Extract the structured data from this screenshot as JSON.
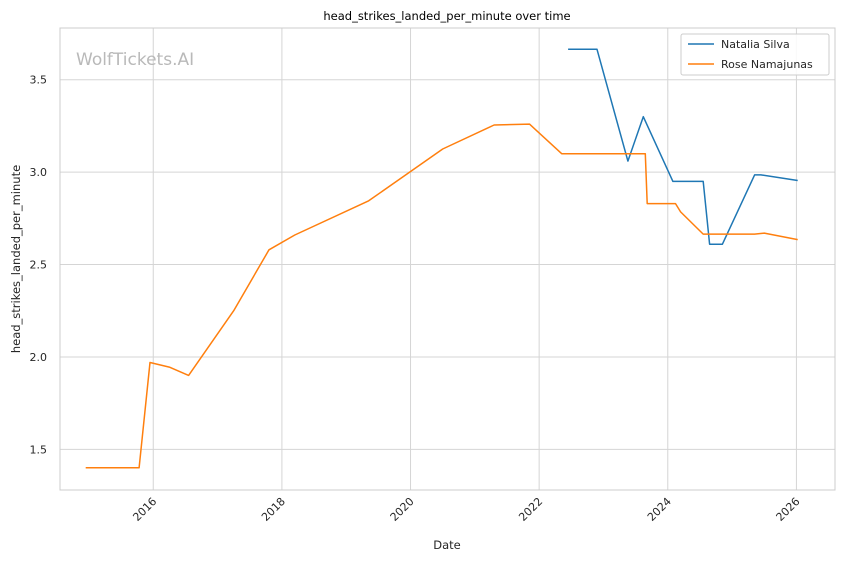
{
  "chart_data": {
    "type": "line",
    "title": "head_strikes_landed_per_minute over time",
    "xlabel": "Date",
    "ylabel": "head_strikes_landed_per_minute",
    "watermark": "WolfTickets.AI",
    "x_ticks": [
      "2016",
      "2018",
      "2020",
      "2022",
      "2024",
      "2026"
    ],
    "y_ticks": [
      "1.5",
      "2.0",
      "2.5",
      "3.0",
      "3.5"
    ],
    "xlim": [
      2014.55,
      2026.6
    ],
    "ylim": [
      1.28,
      3.78
    ],
    "grid": true,
    "legend_position": "top-right",
    "series": [
      {
        "name": "Natalia Silva",
        "color": "#1f77b4",
        "points": [
          [
            2022.45,
            3.665
          ],
          [
            2022.9,
            3.665
          ],
          [
            2023.38,
            3.06
          ],
          [
            2023.62,
            3.3
          ],
          [
            2024.08,
            2.95
          ],
          [
            2024.55,
            2.95
          ],
          [
            2024.65,
            2.61
          ],
          [
            2024.85,
            2.61
          ],
          [
            2025.35,
            2.985
          ],
          [
            2025.45,
            2.985
          ],
          [
            2026.02,
            2.955
          ]
        ]
      },
      {
        "name": "Rose Namajunas",
        "color": "#ff7f0e",
        "points": [
          [
            2014.95,
            1.4
          ],
          [
            2015.78,
            1.4
          ],
          [
            2015.95,
            1.97
          ],
          [
            2016.25,
            1.945
          ],
          [
            2016.55,
            1.9
          ],
          [
            2017.25,
            2.25
          ],
          [
            2017.8,
            2.58
          ],
          [
            2018.2,
            2.66
          ],
          [
            2019.35,
            2.845
          ],
          [
            2020.5,
            3.125
          ],
          [
            2021.3,
            3.255
          ],
          [
            2021.85,
            3.26
          ],
          [
            2022.35,
            3.1
          ],
          [
            2023.65,
            3.1
          ],
          [
            2023.68,
            2.83
          ],
          [
            2024.12,
            2.83
          ],
          [
            2024.2,
            2.785
          ],
          [
            2024.55,
            2.665
          ],
          [
            2025.35,
            2.665
          ],
          [
            2025.5,
            2.67
          ],
          [
            2026.02,
            2.635
          ]
        ]
      }
    ]
  }
}
